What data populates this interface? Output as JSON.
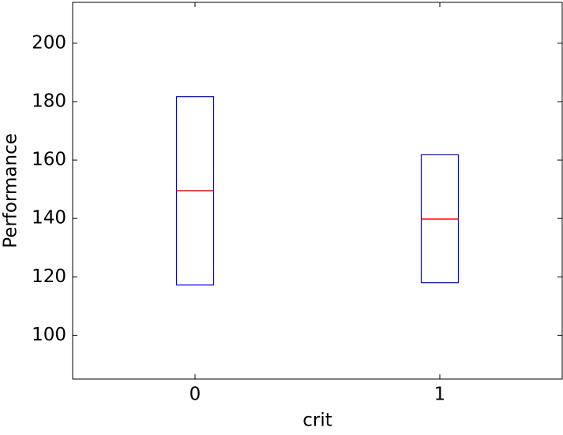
{
  "chart_data": {
    "type": "box",
    "xlabel": "crit",
    "ylabel": "Performance",
    "categories": [
      "0",
      "1"
    ],
    "q1": [
      117.2,
      118
    ],
    "median": [
      149.5,
      139.8
    ],
    "q3": [
      181.7,
      161.8
    ],
    "box_color": "#0000ff",
    "median_color": "#ff0000",
    "ylim": [
      85,
      214
    ],
    "yticks": [
      100,
      120,
      140,
      160,
      180,
      200
    ]
  }
}
